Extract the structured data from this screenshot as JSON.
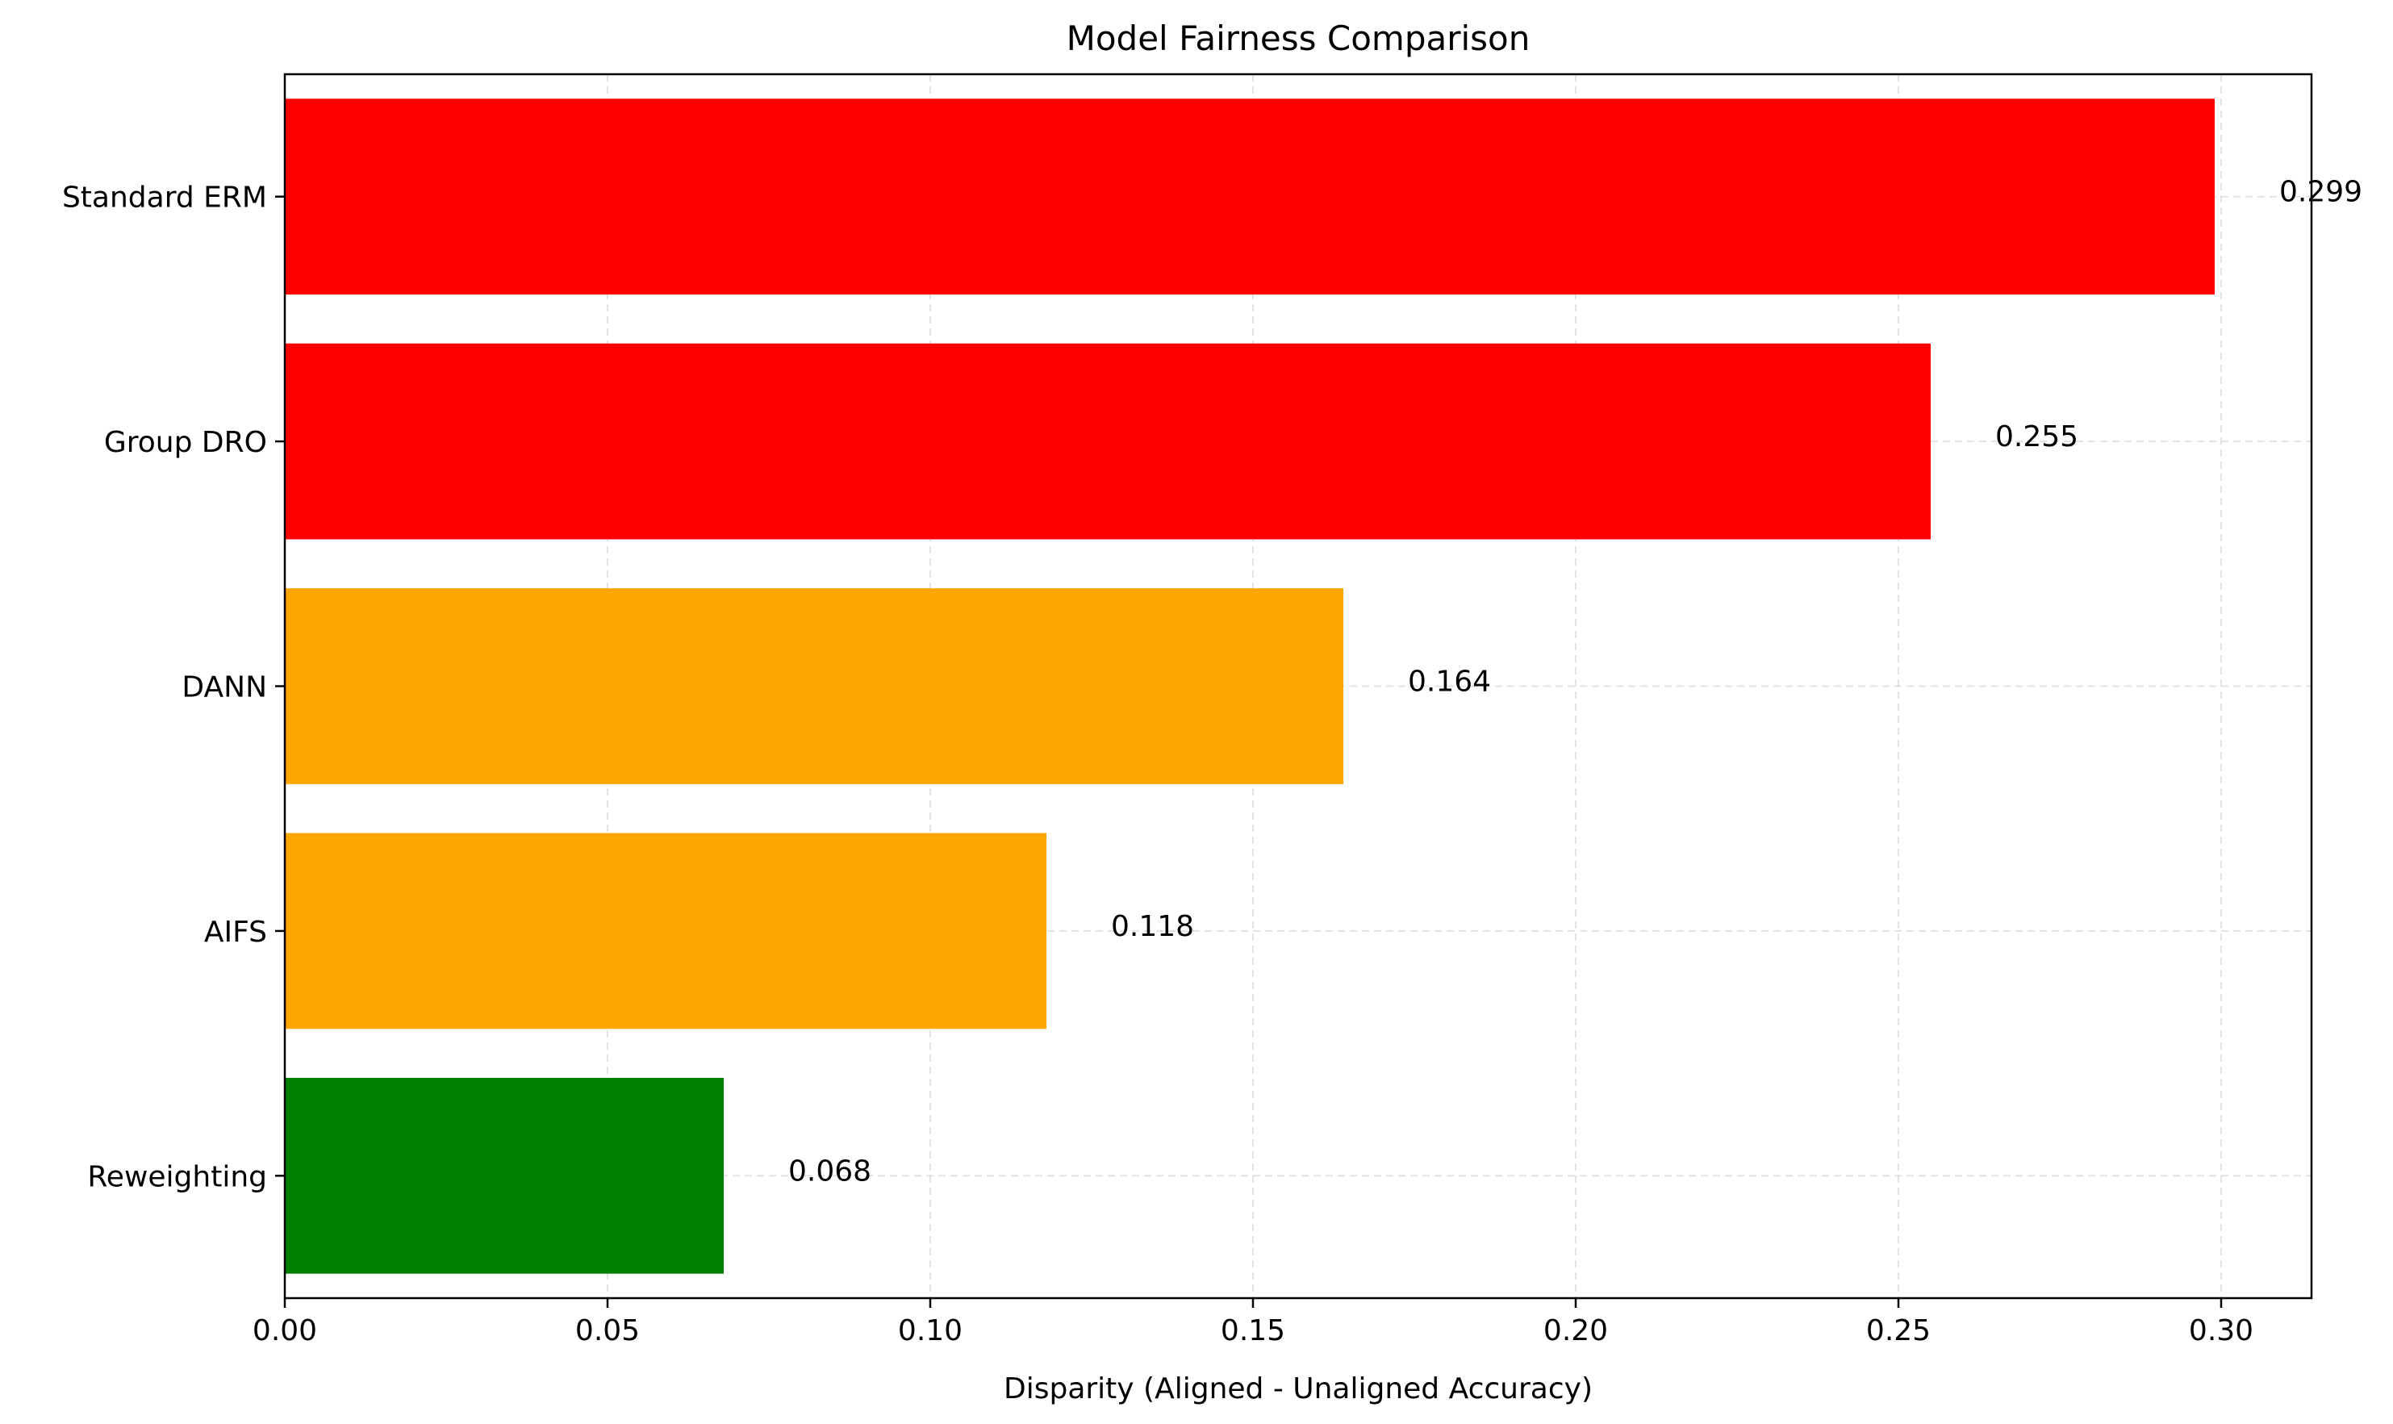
{
  "chart_data": {
    "type": "bar",
    "orientation": "horizontal",
    "title": "Model Fairness Comparison",
    "xlabel": "Disparity (Aligned - Unaligned Accuracy)",
    "ylabel": "",
    "categories": [
      "Standard ERM",
      "Group DRO",
      "DANN",
      "AIFS",
      "Reweighting"
    ],
    "values": [
      0.299,
      0.255,
      0.164,
      0.118,
      0.068
    ],
    "value_labels": [
      "0.299",
      "0.255",
      "0.164",
      "0.118",
      "0.068"
    ],
    "bar_colors": [
      "#ff0000",
      "#ff0000",
      "#ffa500",
      "#ffa500",
      "#008000"
    ],
    "xlim": [
      0,
      0.314
    ],
    "xticks": [
      0,
      0.05,
      0.1,
      0.15,
      0.2,
      0.25,
      0.3
    ],
    "xtick_labels": [
      "0.00",
      "0.05",
      "0.10",
      "0.15",
      "0.20",
      "0.25",
      "0.30"
    ],
    "grid": true,
    "legend": "none"
  }
}
